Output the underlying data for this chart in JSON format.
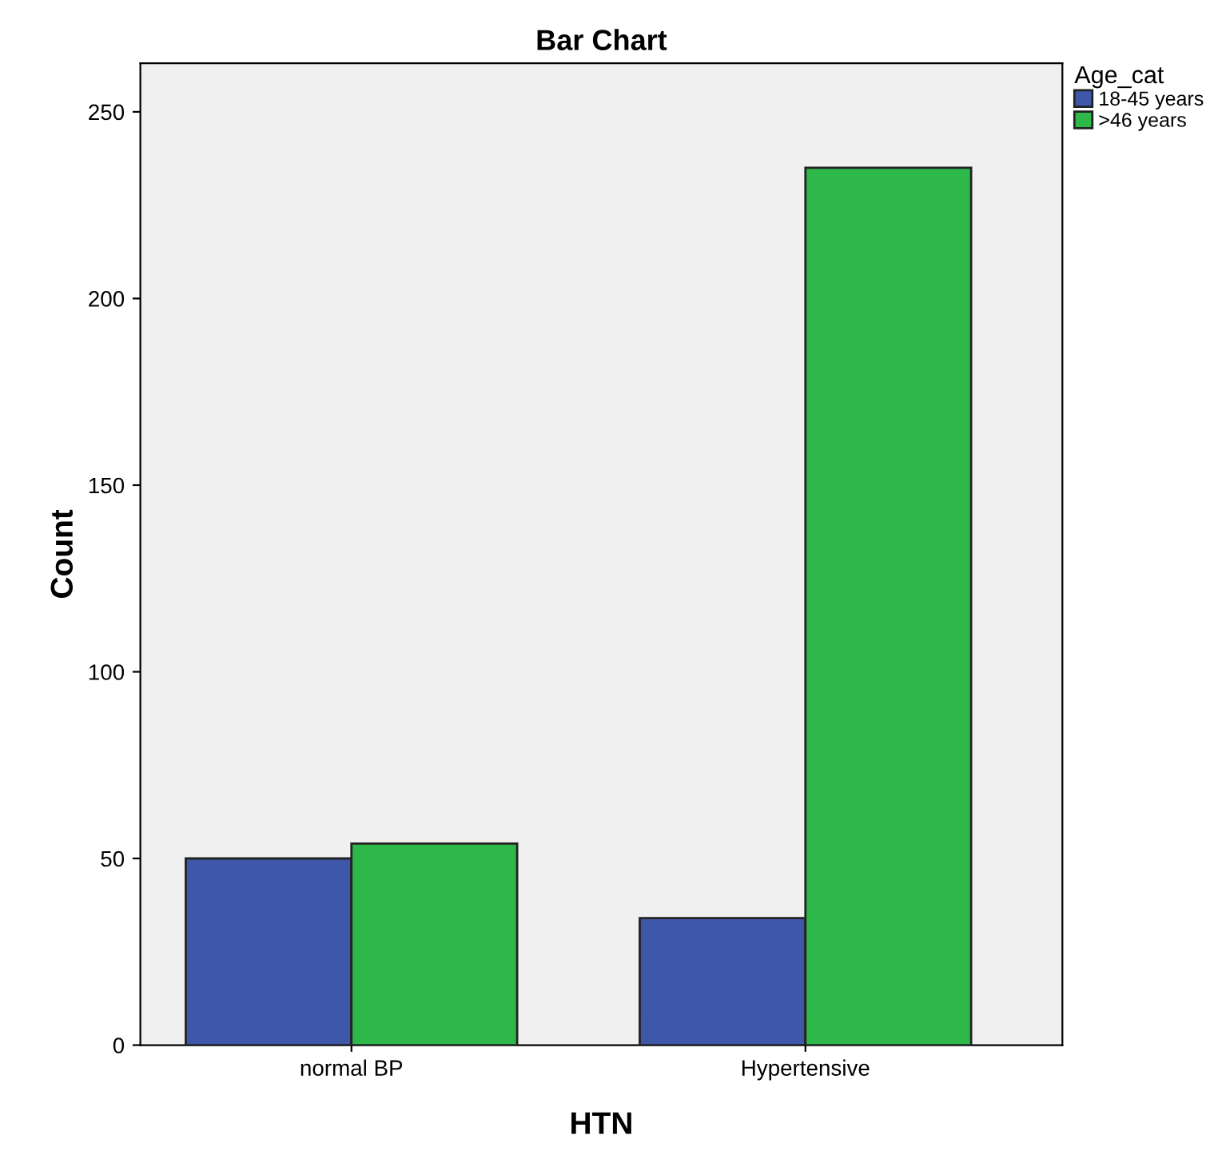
{
  "chart_data": {
    "type": "bar",
    "title": "Bar Chart",
    "xlabel": "HTN",
    "ylabel": "Count",
    "legend_title": "Age_cat",
    "categories": [
      "normal BP",
      "Hypertensive"
    ],
    "series": [
      {
        "name": "18-45 years",
        "color": "#3f57a9",
        "values": [
          50,
          34
        ]
      },
      {
        "name": ">46 years",
        "color": "#2eb84a",
        "values": [
          54,
          235
        ]
      }
    ],
    "ylim": [
      0,
      263
    ],
    "yticks": [
      0,
      50,
      100,
      150,
      200,
      250
    ],
    "grid": false,
    "legend": "top right"
  }
}
